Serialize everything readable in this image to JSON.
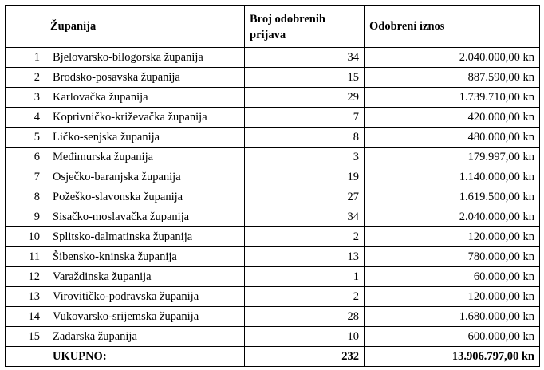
{
  "table": {
    "headers": {
      "num": "",
      "county": "Županija",
      "count": "Broj odobrenih prijava",
      "amount": "Odobreni iznos"
    },
    "rows": [
      {
        "num": "1",
        "county": "Bjelovarsko-bilogorska županija",
        "count": "34",
        "amount": "2.040.000,00 kn"
      },
      {
        "num": "2",
        "county": "Brodsko-posavska županija",
        "count": "15",
        "amount": "887.590,00 kn"
      },
      {
        "num": "3",
        "county": "Karlovačka županija",
        "count": "29",
        "amount": "1.739.710,00 kn"
      },
      {
        "num": "4",
        "county": "Koprivničko-križevačka županija",
        "count": "7",
        "amount": "420.000,00 kn"
      },
      {
        "num": "5",
        "county": "Ličko-senjska županija",
        "count": "8",
        "amount": "480.000,00 kn"
      },
      {
        "num": "6",
        "county": "Međimurska županija",
        "count": "3",
        "amount": "179.997,00 kn"
      },
      {
        "num": "7",
        "county": "Osječko-baranjska županija",
        "count": "19",
        "amount": "1.140.000,00 kn"
      },
      {
        "num": "8",
        "county": "Požeško-slavonska županija",
        "count": "27",
        "amount": "1.619.500,00 kn"
      },
      {
        "num": "9",
        "county": "Sisačko-moslavačka županija",
        "count": "34",
        "amount": "2.040.000,00 kn"
      },
      {
        "num": "10",
        "county": "Splitsko-dalmatinska županija",
        "count": "2",
        "amount": "120.000,00 kn"
      },
      {
        "num": "11",
        "county": "Šibensko-kninska županija",
        "count": "13",
        "amount": "780.000,00 kn"
      },
      {
        "num": "12",
        "county": "Varaždinska županija",
        "count": "1",
        "amount": "60.000,00 kn"
      },
      {
        "num": "13",
        "county": "Virovitičko-podravska županija",
        "count": "2",
        "amount": "120.000,00 kn"
      },
      {
        "num": "14",
        "county": "Vukovarsko-srijemska županija",
        "count": "28",
        "amount": "1.680.000,00 kn"
      },
      {
        "num": "15",
        "county": "Zadarska županija",
        "count": "10",
        "amount": "600.000,00 kn"
      }
    ],
    "total": {
      "label": "UKUPNO:",
      "count": "232",
      "amount": "13.906.797,00 kn"
    }
  }
}
